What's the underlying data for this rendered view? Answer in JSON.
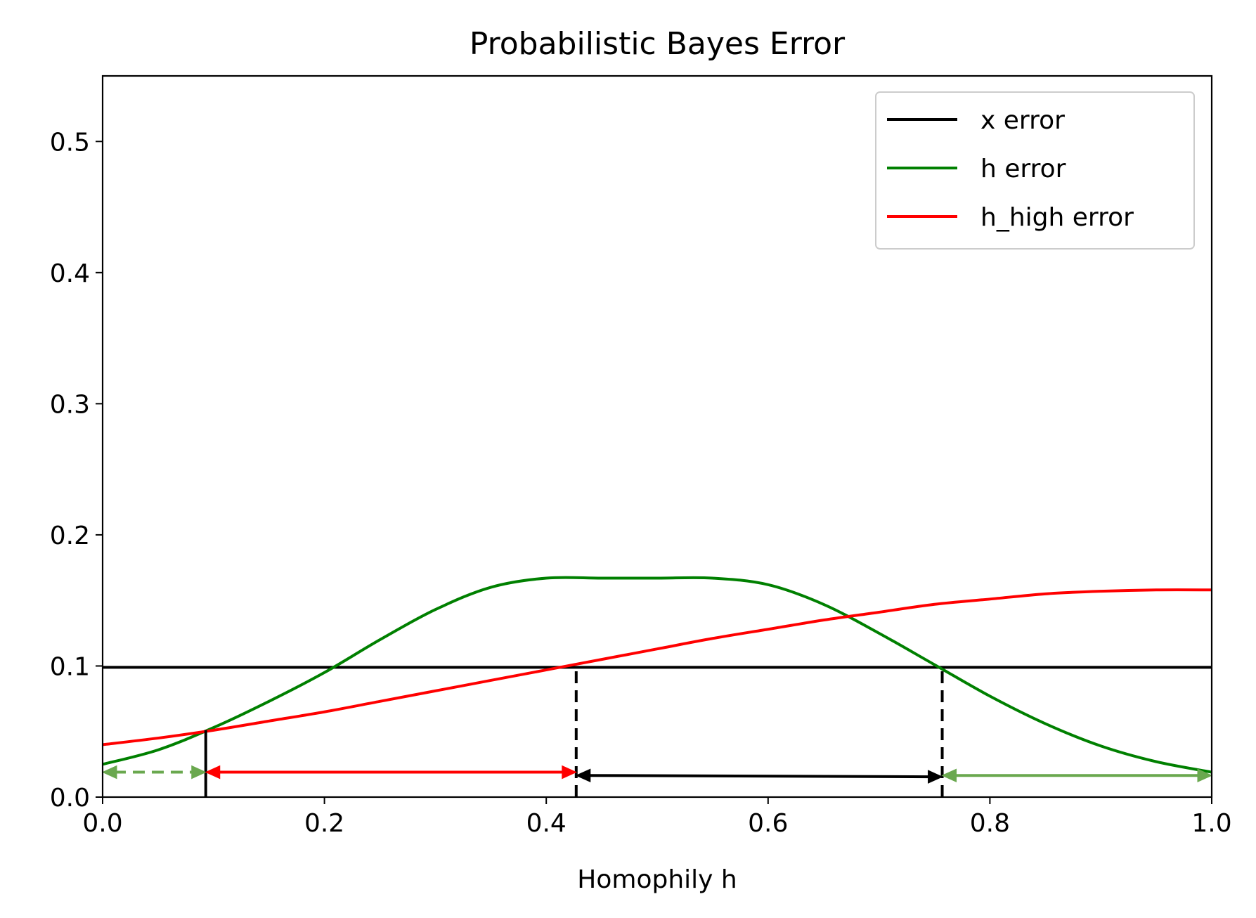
{
  "chart_data": {
    "type": "line",
    "title": "Probabilistic Bayes Error",
    "xlabel": "Homophily h",
    "ylabel": "",
    "xlim": [
      0.0,
      1.0
    ],
    "ylim": [
      0.0,
      0.55
    ],
    "x_ticks": [
      0.0,
      0.2,
      0.4,
      0.6,
      0.8,
      1.0
    ],
    "x_tick_labels": [
      "0.0",
      "0.2",
      "0.4",
      "0.6",
      "0.8",
      "1.0"
    ],
    "y_ticks": [
      0.0,
      0.1,
      0.2,
      0.3,
      0.4,
      0.5
    ],
    "y_tick_labels": [
      "0.0",
      "0.1",
      "0.2",
      "0.3",
      "0.4",
      "0.5"
    ],
    "grid": false,
    "legend_position": "top-right",
    "series": [
      {
        "name": "x error",
        "color": "#000000",
        "x": [
          0.0,
          1.0
        ],
        "y": [
          0.099,
          0.099
        ]
      },
      {
        "name": "h error",
        "color": "#008000",
        "x": [
          0.0,
          0.05,
          0.1,
          0.15,
          0.2,
          0.25,
          0.3,
          0.35,
          0.4,
          0.45,
          0.5,
          0.55,
          0.6,
          0.65,
          0.7,
          0.75,
          0.8,
          0.85,
          0.9,
          0.95,
          1.0
        ],
        "y": [
          0.025,
          0.036,
          0.053,
          0.073,
          0.095,
          0.12,
          0.143,
          0.16,
          0.167,
          0.167,
          0.167,
          0.167,
          0.162,
          0.147,
          0.125,
          0.101,
          0.077,
          0.056,
          0.039,
          0.027,
          0.019
        ]
      },
      {
        "name": "h_high error",
        "color": "#ff0000",
        "x": [
          0.0,
          0.05,
          0.1,
          0.15,
          0.2,
          0.25,
          0.3,
          0.35,
          0.4,
          0.45,
          0.5,
          0.55,
          0.6,
          0.65,
          0.7,
          0.75,
          0.8,
          0.85,
          0.9,
          0.95,
          1.0
        ],
        "y": [
          0.04,
          0.045,
          0.051,
          0.058,
          0.065,
          0.073,
          0.081,
          0.089,
          0.097,
          0.105,
          0.113,
          0.121,
          0.128,
          0.135,
          0.141,
          0.147,
          0.151,
          0.155,
          0.157,
          0.158,
          0.158
        ]
      }
    ],
    "vlines": [
      {
        "x": 0.093,
        "y0": 0.0,
        "y1": 0.051,
        "style": "solid",
        "color": "#000000"
      },
      {
        "x": 0.427,
        "y0": 0.0,
        "y1": 0.099,
        "style": "dashed",
        "color": "#000000"
      },
      {
        "x": 0.757,
        "y0": 0.0,
        "y1": 0.099,
        "style": "dashed",
        "color": "#000000"
      }
    ],
    "arrows": [
      {
        "x0": 0.0,
        "x1": 0.093,
        "y0": 0.019,
        "y1": 0.019,
        "color": "#6aa84f",
        "style": "dashed",
        "heads": "both"
      },
      {
        "x0": 0.093,
        "x1": 0.427,
        "y0": 0.019,
        "y1": 0.019,
        "color": "#ff0000",
        "style": "solid",
        "heads": "both"
      },
      {
        "x0": 0.427,
        "x1": 0.757,
        "y0": 0.0165,
        "y1": 0.0155,
        "color": "#000000",
        "style": "solid",
        "heads": "both"
      },
      {
        "x0": 0.757,
        "x1": 1.0,
        "y0": 0.0165,
        "y1": 0.0165,
        "color": "#6aa84f",
        "style": "solid",
        "heads": "both"
      }
    ]
  }
}
